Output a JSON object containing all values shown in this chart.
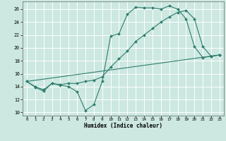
{
  "title": "",
  "xlabel": "Humidex (Indice chaleur)",
  "ylabel": "",
  "bg_color": "#cce8e0",
  "grid_color": "#ffffff",
  "line_color": "#2e7d6e",
  "marker_color": "#2e7d6e",
  "xlim": [
    -0.5,
    23.5
  ],
  "ylim": [
    9.5,
    27.2
  ],
  "xticks": [
    0,
    1,
    2,
    3,
    4,
    5,
    6,
    7,
    8,
    9,
    10,
    11,
    12,
    13,
    14,
    15,
    16,
    17,
    18,
    19,
    20,
    21,
    22,
    23
  ],
  "yticks": [
    10,
    12,
    14,
    16,
    18,
    20,
    22,
    24,
    26
  ],
  "line1_x": [
    0,
    1,
    2,
    3,
    4,
    5,
    6,
    7,
    8,
    9,
    10,
    11,
    12,
    13,
    14,
    15,
    16,
    17,
    18,
    19,
    20,
    21,
    22,
    23
  ],
  "line1_y": [
    14.8,
    13.9,
    13.3,
    14.5,
    14.2,
    14.0,
    13.2,
    10.3,
    11.2,
    14.8,
    21.8,
    22.2,
    25.2,
    26.3,
    26.2,
    26.2,
    26.0,
    26.5,
    26.0,
    24.5,
    20.2,
    18.5,
    18.7,
    18.9
  ],
  "line2_x": [
    0,
    1,
    2,
    3,
    4,
    5,
    6,
    7,
    8,
    9,
    10,
    11,
    12,
    13,
    14,
    15,
    16,
    17,
    18,
    19,
    20,
    21,
    22,
    23
  ],
  "line2_y": [
    14.8,
    14.0,
    13.5,
    14.5,
    14.3,
    14.5,
    14.5,
    14.8,
    15.0,
    15.5,
    17.0,
    18.3,
    19.5,
    21.0,
    22.0,
    23.0,
    24.0,
    24.8,
    25.5,
    25.8,
    24.5,
    20.2,
    18.7,
    18.9
  ],
  "line3_x": [
    0,
    23
  ],
  "line3_y": [
    14.8,
    18.9
  ]
}
